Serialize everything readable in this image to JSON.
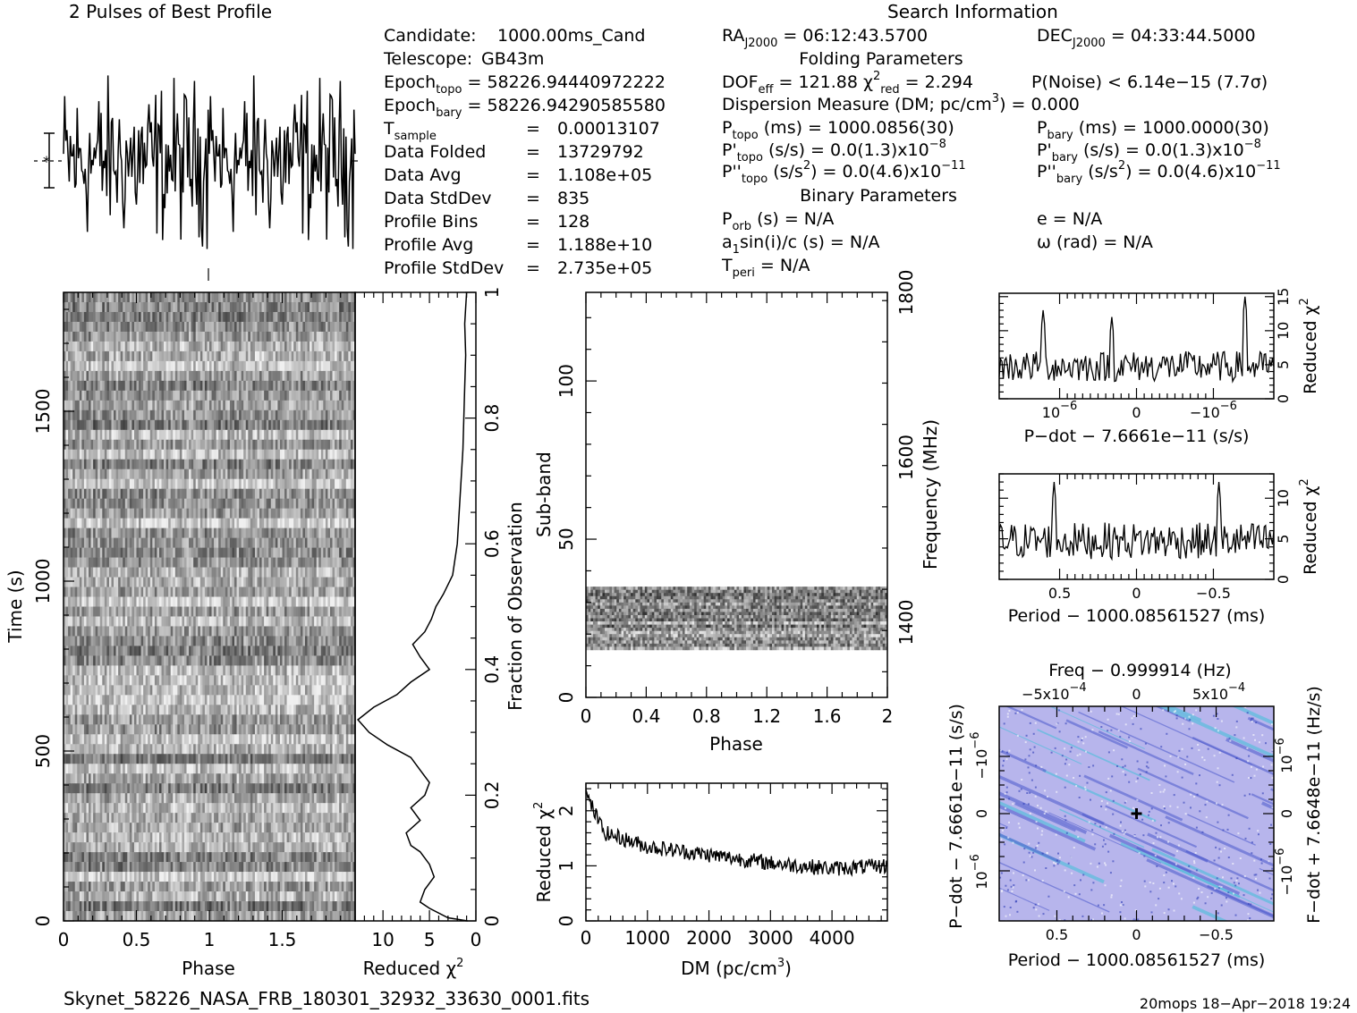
{
  "profile_title": "2 Pulses of Best Profile",
  "search_title": "Search Information",
  "candidate_info": [
    {
      "label": "Candidate:",
      "value": "1000.00ms_Cand"
    },
    {
      "label": "Telescope:",
      "value": "GB43m"
    },
    {
      "label": "Epoch",
      "sub": "topo",
      "value": "= 58226.94440972222"
    },
    {
      "label": "Epoch",
      "sub": "bary",
      "value": "= 58226.94290585580"
    },
    {
      "label": "T",
      "sub": "sample",
      "eq": "=",
      "value": "0.00013107"
    },
    {
      "label": "Data Folded",
      "eq": "=",
      "value": "13729792"
    },
    {
      "label": "Data Avg",
      "eq": "=",
      "value": "1.108e+05"
    },
    {
      "label": "Data StdDev",
      "eq": "=",
      "value": "835"
    },
    {
      "label": "Profile Bins",
      "eq": "=",
      "value": "128"
    },
    {
      "label": "Profile Avg",
      "eq": "=",
      "value": "1.188e+10"
    },
    {
      "label": "Profile StdDev",
      "eq": "=",
      "value": "2.735e+05"
    }
  ],
  "search_info": {
    "ra": "= 06:12:43.5700",
    "ra_label": "RA",
    "ra_sub": "J2000",
    "dec": "= 04:33:44.5000",
    "dec_label": "DEC",
    "dec_sub": "J2000",
    "folding_title": "Folding Parameters",
    "dof": "DOF",
    "dof_sub": "eff",
    "dof_value": "= 121.88",
    "chi": "χ",
    "chi_sup": "2",
    "chi_sub": "red",
    "chi_value": "= 2.294",
    "pnoise": "P(Noise) < 6.14e−15  (7.7σ)",
    "dm_line": "Dispersion Measure (DM; pc/cm",
    "dm_sup": "3",
    "dm_value": ") = 0.000",
    "ptopo": "P",
    "ptopo_sub": "topo",
    "ptopo_value": "(ms) =  1000.0856(30)",
    "pbary": "P",
    "pbary_sub": "bary",
    "pbary_value": "(ms) =  1000.0000(30)",
    "pdtopo": "P'",
    "pdtopo_sub": "topo",
    "pdtopo_value": "(s/s) = 0.0(1.3)x10",
    "pdtopo_exp": "−8",
    "pdbary": "P'",
    "pdbary_sub": "bary",
    "pdbary_value": "(s/s) = 0.0(1.3)x10",
    "pdbary_exp": "−8",
    "pddtopo": "P''",
    "pddtopo_sub": "topo",
    "pddtopo_value": "(s/s",
    "pddtopo_sup2": "2",
    "pddtopo_value2": ") = 0.0(4.6)x10",
    "pddtopo_exp": "−11",
    "pddbary": "P''",
    "pddbary_sub": "bary",
    "pddbary_value": "(s/s",
    "pddbary_sup2": "2",
    "pddbary_value2": ") = 0.0(4.6)x10",
    "pddbary_exp": "−11",
    "binary_title": "Binary Parameters",
    "porb": "P",
    "porb_sub": "orb",
    "porb_value": "(s) = N/A",
    "ecc": "e = N/A",
    "a1": "a",
    "a1_sub": "1",
    "a1_value": "sin(i)/c (s) = N/A",
    "omega": "ω (rad) = N/A",
    "tperi": "T",
    "tperi_sub": "peri",
    "tperi_value": "= N/A"
  },
  "footer": {
    "filename": "Skynet_58226_NASA_FRB_180301_32932_33630_0001.fits",
    "stamp": "20mops 18−Apr−2018 19:24"
  },
  "colors": {
    "axis": "#000000",
    "contour_bg": "#b7b5ec",
    "contour_dark": "#4a58cc",
    "contour_cyan": "#3fc0d8"
  },
  "chart_data": [
    {
      "id": "profile",
      "type": "line",
      "title": "2 Pulses of Best Profile",
      "x_range": [
        0,
        2
      ],
      "bins": 128,
      "pulses": 2
    },
    {
      "id": "time_phase",
      "type": "heatmap",
      "xlabel": "Phase",
      "ylabel": "Time (s)",
      "x_ticks": [
        "0",
        "0.5",
        "1",
        "1.5"
      ],
      "y_ticks": [
        "0",
        "500",
        "1000",
        "1500"
      ],
      "xlim": [
        0,
        2
      ],
      "ylim": [
        0,
        1850
      ]
    },
    {
      "id": "redchi_time",
      "type": "line",
      "xlabel": "Reduced χ",
      "xlabel_sup": "2",
      "ylabel_right": "Fraction of Observation",
      "x_ticks": [
        "10",
        "5",
        "0"
      ],
      "y_ticks": [
        "0",
        "0.2",
        "0.4",
        "0.6",
        "0.8",
        "1"
      ],
      "xlim": [
        13,
        0
      ],
      "ylim": [
        0,
        1
      ],
      "points": [
        [
          0.9,
          0.0
        ],
        [
          3,
          0.005
        ],
        [
          5,
          0.02
        ],
        [
          6,
          0.03
        ],
        [
          5.5,
          0.05
        ],
        [
          4.5,
          0.07
        ],
        [
          5,
          0.09
        ],
        [
          6,
          0.11
        ],
        [
          7,
          0.12
        ],
        [
          7.5,
          0.14
        ],
        [
          6,
          0.16
        ],
        [
          7,
          0.18
        ],
        [
          5.5,
          0.2
        ],
        [
          5,
          0.22
        ],
        [
          6,
          0.24
        ],
        [
          7,
          0.26
        ],
        [
          9.5,
          0.28
        ],
        [
          11.5,
          0.3
        ],
        [
          12.7,
          0.32
        ],
        [
          11,
          0.34
        ],
        [
          8.5,
          0.36
        ],
        [
          7,
          0.38
        ],
        [
          5,
          0.4
        ],
        [
          6,
          0.42
        ],
        [
          6.8,
          0.44
        ],
        [
          5.5,
          0.46
        ],
        [
          4.8,
          0.48
        ],
        [
          4.3,
          0.5
        ],
        [
          3.5,
          0.52
        ],
        [
          2.5,
          0.55
        ],
        [
          2,
          0.6
        ],
        [
          1.8,
          0.65
        ],
        [
          1.6,
          0.7
        ],
        [
          1.4,
          0.75
        ],
        [
          1.3,
          0.8
        ],
        [
          1.2,
          0.85
        ],
        [
          1.1,
          0.9
        ],
        [
          1.2,
          0.95
        ],
        [
          1.0,
          1.0
        ]
      ]
    },
    {
      "id": "subband_phase",
      "type": "heatmap",
      "xlabel": "Phase",
      "ylabel": "Sub-band",
      "ylabel_right": "Frequency (MHz)",
      "x_ticks": [
        "0",
        "0.4",
        "0.8",
        "1.2",
        "1.6",
        "2"
      ],
      "y_ticks": [
        "0",
        "50",
        "100"
      ],
      "y_right_ticks": [
        "1400",
        "1600",
        "1800"
      ],
      "xlim": [
        0,
        2
      ],
      "ylim": [
        0,
        128
      ],
      "band_range": [
        15,
        35
      ]
    },
    {
      "id": "dm_chi",
      "type": "line",
      "xlabel": "DM (pc/cm",
      "xlabel_sup": "3",
      "xlabel_end": ")",
      "ylabel": "Reduced χ",
      "ylabel_sup": "2",
      "x_ticks": [
        "0",
        "1000",
        "2000",
        "3000",
        "4000"
      ],
      "y_ticks": [
        "0",
        "1",
        "2"
      ],
      "xlim": [
        0,
        4900
      ],
      "ylim": [
        0,
        2.5
      ],
      "trend": [
        [
          0,
          2.3
        ],
        [
          300,
          1.6
        ],
        [
          1000,
          1.35
        ],
        [
          2000,
          1.2
        ],
        [
          3000,
          1.05
        ],
        [
          4000,
          0.95
        ],
        [
          4900,
          1.0
        ]
      ]
    },
    {
      "id": "pdot_chi",
      "type": "line",
      "xlabel": "P−dot − 7.6661e−11 (s/s)",
      "ylabel_right": "Reduced χ",
      "ylabel_right_sup": "2",
      "x_ticks": [
        "10",
        "0",
        "−10"
      ],
      "x_tick_exp": "−6",
      "y_ticks": [
        "0",
        "5",
        "10",
        "15"
      ],
      "ylim": [
        0,
        15.5
      ]
    },
    {
      "id": "period_chi",
      "type": "line",
      "xlabel": "Period − 1000.08561527 (ms)",
      "ylabel_right": "Reduced χ",
      "ylabel_right_sup": "2",
      "x_ticks": [
        "0.5",
        "0",
        "−0.5"
      ],
      "y_ticks": [
        "0",
        "5",
        "10"
      ],
      "ylim": [
        0,
        13
      ]
    },
    {
      "id": "p_pdot_plane",
      "type": "heatmap",
      "top_title": "Freq − 0.999914 (Hz)",
      "top_ticks": [
        "−5x10",
        "0",
        "5x10"
      ],
      "top_tick_exp": "−4",
      "xlabel": "Period − 1000.08561527 (ms)",
      "ylabel": "P−dot − 7.6661e−11 (s/s)",
      "ylabel_right": "F−dot + 7.6648e−11 (Hz/s)",
      "x_ticks": [
        "0.5",
        "0",
        "−0.5"
      ],
      "y_ticks": [
        "10",
        "0",
        "−10"
      ],
      "y_tick_exp": "−6",
      "best_point": [
        0,
        0
      ]
    }
  ]
}
